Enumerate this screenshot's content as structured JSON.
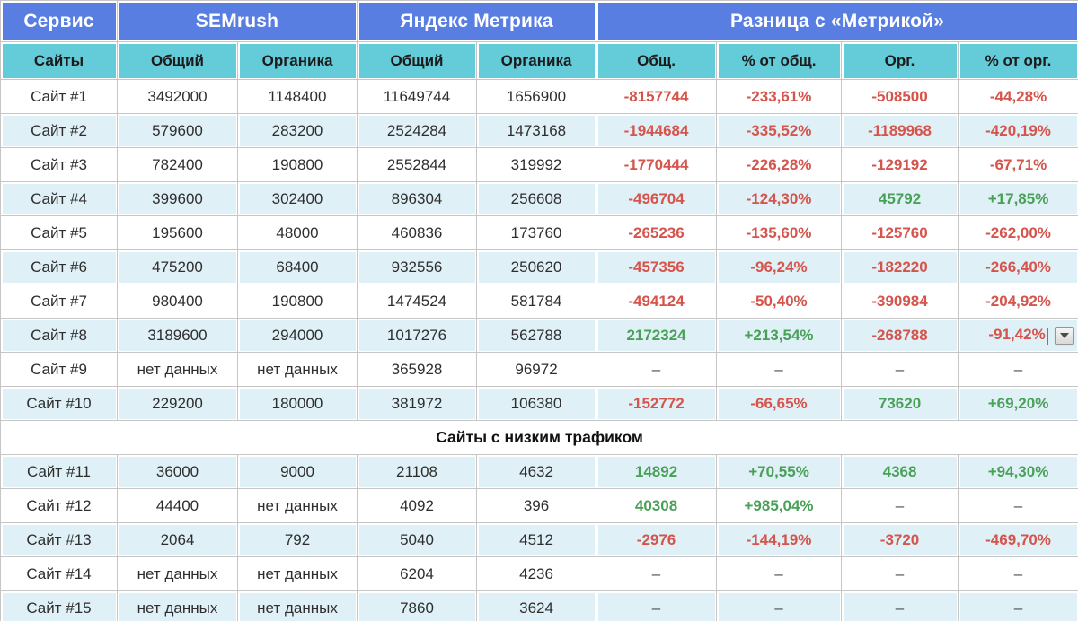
{
  "colors": {
    "header_blue": "#587ee2",
    "subheader_teal": "#64cbd9",
    "row_stripe": "#dff0f7",
    "negative": "#d5544b",
    "positive": "#49a057",
    "grid": "#c6c6c6",
    "text": "#2e2e2e"
  },
  "table": {
    "header": {
      "service_label": "Сервис",
      "groups": [
        {
          "label": "SEMrush",
          "span": 2
        },
        {
          "label": "Яндекс Метрика",
          "span": 2
        },
        {
          "label": "Разница с «Метрикой»",
          "span": 4
        }
      ],
      "subheaders": [
        "Сайты",
        "Общий",
        "Органика",
        "Общий",
        "Органика",
        "Общ.",
        "% от общ.",
        "Орг.",
        "% от орг."
      ]
    },
    "sections": [
      {
        "title": "",
        "rows": [
          {
            "site": "Сайт #1",
            "cells": [
              [
                "3492000",
                "plain"
              ],
              [
                "1148400",
                "plain"
              ],
              [
                "11649744",
                "plain"
              ],
              [
                "1656900",
                "plain"
              ],
              [
                "-8157744",
                "neg"
              ],
              [
                "-233,61%",
                "neg"
              ],
              [
                "-508500",
                "neg"
              ],
              [
                "-44,28%",
                "neg"
              ]
            ]
          },
          {
            "site": "Сайт #2",
            "cells": [
              [
                "579600",
                "plain"
              ],
              [
                "283200",
                "plain"
              ],
              [
                "2524284",
                "plain"
              ],
              [
                "1473168",
                "plain"
              ],
              [
                "-1944684",
                "neg"
              ],
              [
                "-335,52%",
                "neg"
              ],
              [
                "-1189968",
                "neg"
              ],
              [
                "-420,19%",
                "neg"
              ]
            ]
          },
          {
            "site": "Сайт #3",
            "cells": [
              [
                "782400",
                "plain"
              ],
              [
                "190800",
                "plain"
              ],
              [
                "2552844",
                "plain"
              ],
              [
                "319992",
                "plain"
              ],
              [
                "-1770444",
                "neg"
              ],
              [
                "-226,28%",
                "neg"
              ],
              [
                "-129192",
                "neg"
              ],
              [
                "-67,71%",
                "neg"
              ]
            ]
          },
          {
            "site": "Сайт #4",
            "cells": [
              [
                "399600",
                "plain"
              ],
              [
                "302400",
                "plain"
              ],
              [
                "896304",
                "plain"
              ],
              [
                "256608",
                "plain"
              ],
              [
                "-496704",
                "neg"
              ],
              [
                "-124,30%",
                "neg"
              ],
              [
                "45792",
                "pos"
              ],
              [
                "+17,85%",
                "pos"
              ]
            ]
          },
          {
            "site": "Сайт #5",
            "cells": [
              [
                "195600",
                "plain"
              ],
              [
                "48000",
                "plain"
              ],
              [
                "460836",
                "plain"
              ],
              [
                "173760",
                "plain"
              ],
              [
                "-265236",
                "neg"
              ],
              [
                "-135,60%",
                "neg"
              ],
              [
                "-125760",
                "neg"
              ],
              [
                "-262,00%",
                "neg"
              ]
            ]
          },
          {
            "site": "Сайт #6",
            "cells": [
              [
                "475200",
                "plain"
              ],
              [
                "68400",
                "plain"
              ],
              [
                "932556",
                "plain"
              ],
              [
                "250620",
                "plain"
              ],
              [
                "-457356",
                "neg"
              ],
              [
                "-96,24%",
                "neg"
              ],
              [
                "-182220",
                "neg"
              ],
              [
                "-266,40%",
                "neg"
              ]
            ]
          },
          {
            "site": "Сайт #7",
            "cells": [
              [
                "980400",
                "plain"
              ],
              [
                "190800",
                "plain"
              ],
              [
                "1474524",
                "plain"
              ],
              [
                "581784",
                "plain"
              ],
              [
                "-494124",
                "neg"
              ],
              [
                "-50,40%",
                "neg"
              ],
              [
                "-390984",
                "neg"
              ],
              [
                "-204,92%",
                "neg"
              ]
            ]
          },
          {
            "site": "Сайт #8",
            "editing": 7,
            "cells": [
              [
                "3189600",
                "plain"
              ],
              [
                "294000",
                "plain"
              ],
              [
                "1017276",
                "plain"
              ],
              [
                "562788",
                "plain"
              ],
              [
                "2172324",
                "pos"
              ],
              [
                "+213,54%",
                "pos"
              ],
              [
                "-268788",
                "neg"
              ],
              [
                "-91,42%",
                "neg"
              ]
            ]
          },
          {
            "site": "Сайт #9",
            "cells": [
              [
                "нет данных",
                "plain"
              ],
              [
                "нет данных",
                "plain"
              ],
              [
                "365928",
                "plain"
              ],
              [
                "96972",
                "plain"
              ],
              [
                "–",
                "dash"
              ],
              [
                "–",
                "dash"
              ],
              [
                "–",
                "dash"
              ],
              [
                "–",
                "dash"
              ]
            ]
          },
          {
            "site": "Сайт #10",
            "cells": [
              [
                "229200",
                "plain"
              ],
              [
                "180000",
                "plain"
              ],
              [
                "381972",
                "plain"
              ],
              [
                "106380",
                "plain"
              ],
              [
                "-152772",
                "neg"
              ],
              [
                "-66,65%",
                "neg"
              ],
              [
                "73620",
                "pos"
              ],
              [
                "+69,20%",
                "pos"
              ]
            ]
          }
        ]
      },
      {
        "title": "Сайты с низким трафиком",
        "rows": [
          {
            "site": "Сайт #11",
            "cells": [
              [
                "36000",
                "plain"
              ],
              [
                "9000",
                "plain"
              ],
              [
                "21108",
                "plain"
              ],
              [
                "4632",
                "plain"
              ],
              [
                "14892",
                "pos"
              ],
              [
                "+70,55%",
                "pos"
              ],
              [
                "4368",
                "pos"
              ],
              [
                "+94,30%",
                "pos"
              ]
            ]
          },
          {
            "site": "Сайт #12",
            "cells": [
              [
                "44400",
                "plain"
              ],
              [
                "нет данных",
                "plain"
              ],
              [
                "4092",
                "plain"
              ],
              [
                "396",
                "plain"
              ],
              [
                "40308",
                "pos"
              ],
              [
                "+985,04%",
                "pos"
              ],
              [
                "–",
                "dash"
              ],
              [
                "–",
                "dash"
              ]
            ]
          },
          {
            "site": "Сайт #13",
            "cells": [
              [
                "2064",
                "plain"
              ],
              [
                "792",
                "plain"
              ],
              [
                "5040",
                "plain"
              ],
              [
                "4512",
                "plain"
              ],
              [
                "-2976",
                "neg"
              ],
              [
                "-144,19%",
                "neg"
              ],
              [
                "-3720",
                "neg"
              ],
              [
                "-469,70%",
                "neg"
              ]
            ]
          },
          {
            "site": "Сайт #14",
            "cells": [
              [
                "нет данных",
                "plain"
              ],
              [
                "нет данных",
                "plain"
              ],
              [
                "6204",
                "plain"
              ],
              [
                "4236",
                "plain"
              ],
              [
                "–",
                "dash"
              ],
              [
                "–",
                "dash"
              ],
              [
                "–",
                "dash"
              ],
              [
                "–",
                "dash"
              ]
            ]
          },
          {
            "site": "Сайт #15",
            "cells": [
              [
                "нет данных",
                "plain"
              ],
              [
                "нет данных",
                "plain"
              ],
              [
                "7860",
                "plain"
              ],
              [
                "3624",
                "plain"
              ],
              [
                "–",
                "dash"
              ],
              [
                "–",
                "dash"
              ],
              [
                "–",
                "dash"
              ],
              [
                "–",
                "dash"
              ]
            ]
          }
        ]
      }
    ]
  },
  "widget": {
    "editing_row": "Сайт #8",
    "editing_column": "% от орг.",
    "dropdown_icon": "chevron-down"
  }
}
